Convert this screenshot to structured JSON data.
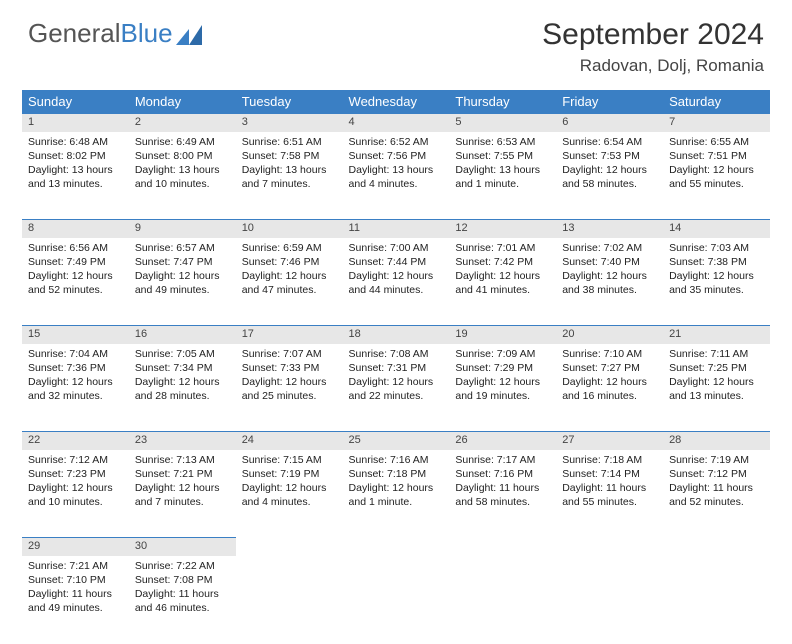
{
  "brand": {
    "text1": "General",
    "text2": "Blue"
  },
  "title": "September 2024",
  "location": "Radovan, Dolj, Romania",
  "colors": {
    "header_bg": "#3a7fc4",
    "header_text": "#ffffff",
    "daynum_bg": "#e7e7e7",
    "border": "#3a7fc4",
    "body_text": "#222222",
    "logo_gray": "#555555",
    "logo_blue": "#3a7fc4"
  },
  "weekdays": [
    "Sunday",
    "Monday",
    "Tuesday",
    "Wednesday",
    "Thursday",
    "Friday",
    "Saturday"
  ],
  "weeks": [
    [
      {
        "n": "1",
        "sr": "6:48 AM",
        "ss": "8:02 PM",
        "dl": "13 hours and 13 minutes."
      },
      {
        "n": "2",
        "sr": "6:49 AM",
        "ss": "8:00 PM",
        "dl": "13 hours and 10 minutes."
      },
      {
        "n": "3",
        "sr": "6:51 AM",
        "ss": "7:58 PM",
        "dl": "13 hours and 7 minutes."
      },
      {
        "n": "4",
        "sr": "6:52 AM",
        "ss": "7:56 PM",
        "dl": "13 hours and 4 minutes."
      },
      {
        "n": "5",
        "sr": "6:53 AM",
        "ss": "7:55 PM",
        "dl": "13 hours and 1 minute."
      },
      {
        "n": "6",
        "sr": "6:54 AM",
        "ss": "7:53 PM",
        "dl": "12 hours and 58 minutes."
      },
      {
        "n": "7",
        "sr": "6:55 AM",
        "ss": "7:51 PM",
        "dl": "12 hours and 55 minutes."
      }
    ],
    [
      {
        "n": "8",
        "sr": "6:56 AM",
        "ss": "7:49 PM",
        "dl": "12 hours and 52 minutes."
      },
      {
        "n": "9",
        "sr": "6:57 AM",
        "ss": "7:47 PM",
        "dl": "12 hours and 49 minutes."
      },
      {
        "n": "10",
        "sr": "6:59 AM",
        "ss": "7:46 PM",
        "dl": "12 hours and 47 minutes."
      },
      {
        "n": "11",
        "sr": "7:00 AM",
        "ss": "7:44 PM",
        "dl": "12 hours and 44 minutes."
      },
      {
        "n": "12",
        "sr": "7:01 AM",
        "ss": "7:42 PM",
        "dl": "12 hours and 41 minutes."
      },
      {
        "n": "13",
        "sr": "7:02 AM",
        "ss": "7:40 PM",
        "dl": "12 hours and 38 minutes."
      },
      {
        "n": "14",
        "sr": "7:03 AM",
        "ss": "7:38 PM",
        "dl": "12 hours and 35 minutes."
      }
    ],
    [
      {
        "n": "15",
        "sr": "7:04 AM",
        "ss": "7:36 PM",
        "dl": "12 hours and 32 minutes."
      },
      {
        "n": "16",
        "sr": "7:05 AM",
        "ss": "7:34 PM",
        "dl": "12 hours and 28 minutes."
      },
      {
        "n": "17",
        "sr": "7:07 AM",
        "ss": "7:33 PM",
        "dl": "12 hours and 25 minutes."
      },
      {
        "n": "18",
        "sr": "7:08 AM",
        "ss": "7:31 PM",
        "dl": "12 hours and 22 minutes."
      },
      {
        "n": "19",
        "sr": "7:09 AM",
        "ss": "7:29 PM",
        "dl": "12 hours and 19 minutes."
      },
      {
        "n": "20",
        "sr": "7:10 AM",
        "ss": "7:27 PM",
        "dl": "12 hours and 16 minutes."
      },
      {
        "n": "21",
        "sr": "7:11 AM",
        "ss": "7:25 PM",
        "dl": "12 hours and 13 minutes."
      }
    ],
    [
      {
        "n": "22",
        "sr": "7:12 AM",
        "ss": "7:23 PM",
        "dl": "12 hours and 10 minutes."
      },
      {
        "n": "23",
        "sr": "7:13 AM",
        "ss": "7:21 PM",
        "dl": "12 hours and 7 minutes."
      },
      {
        "n": "24",
        "sr": "7:15 AM",
        "ss": "7:19 PM",
        "dl": "12 hours and 4 minutes."
      },
      {
        "n": "25",
        "sr": "7:16 AM",
        "ss": "7:18 PM",
        "dl": "12 hours and 1 minute."
      },
      {
        "n": "26",
        "sr": "7:17 AM",
        "ss": "7:16 PM",
        "dl": "11 hours and 58 minutes."
      },
      {
        "n": "27",
        "sr": "7:18 AM",
        "ss": "7:14 PM",
        "dl": "11 hours and 55 minutes."
      },
      {
        "n": "28",
        "sr": "7:19 AM",
        "ss": "7:12 PM",
        "dl": "11 hours and 52 minutes."
      }
    ],
    [
      {
        "n": "29",
        "sr": "7:21 AM",
        "ss": "7:10 PM",
        "dl": "11 hours and 49 minutes."
      },
      {
        "n": "30",
        "sr": "7:22 AM",
        "ss": "7:08 PM",
        "dl": "11 hours and 46 minutes."
      },
      null,
      null,
      null,
      null,
      null
    ]
  ],
  "labels": {
    "sunrise": "Sunrise:",
    "sunset": "Sunset:",
    "daylight": "Daylight:"
  }
}
